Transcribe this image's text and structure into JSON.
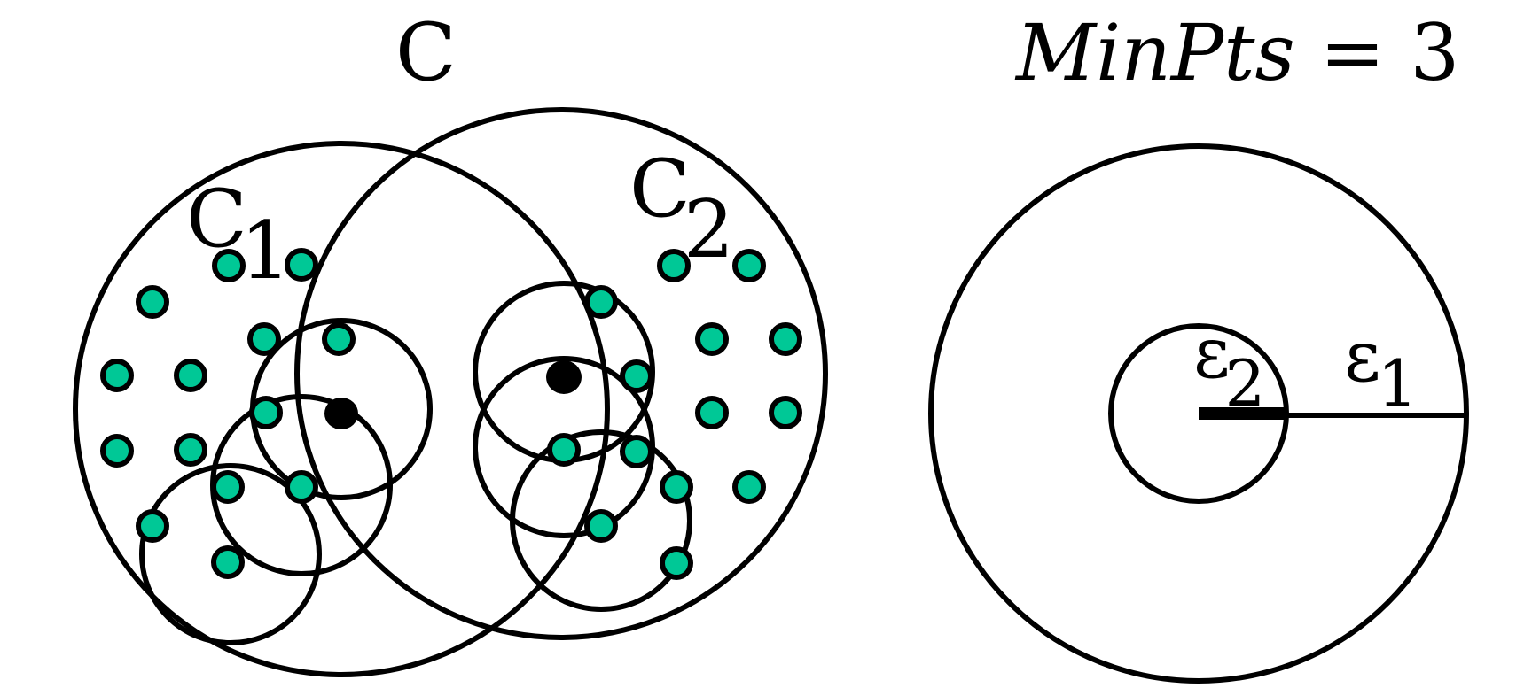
{
  "labels": {
    "cluster_c": "C",
    "cluster_c1_main": "C",
    "cluster_c1_sub": "1",
    "cluster_c2_main": "C",
    "cluster_c2_sub": "2",
    "minpts_name": "MinPts",
    "minpts_eq": " = 3",
    "eps2_main": "ε",
    "eps2_sub": "2",
    "eps1_main": "ε",
    "eps1_sub": "1"
  },
  "colors": {
    "stroke": "#000000",
    "point_fill": "#00c896",
    "core_point_fill": "#000000",
    "background": "#ffffff"
  }
}
